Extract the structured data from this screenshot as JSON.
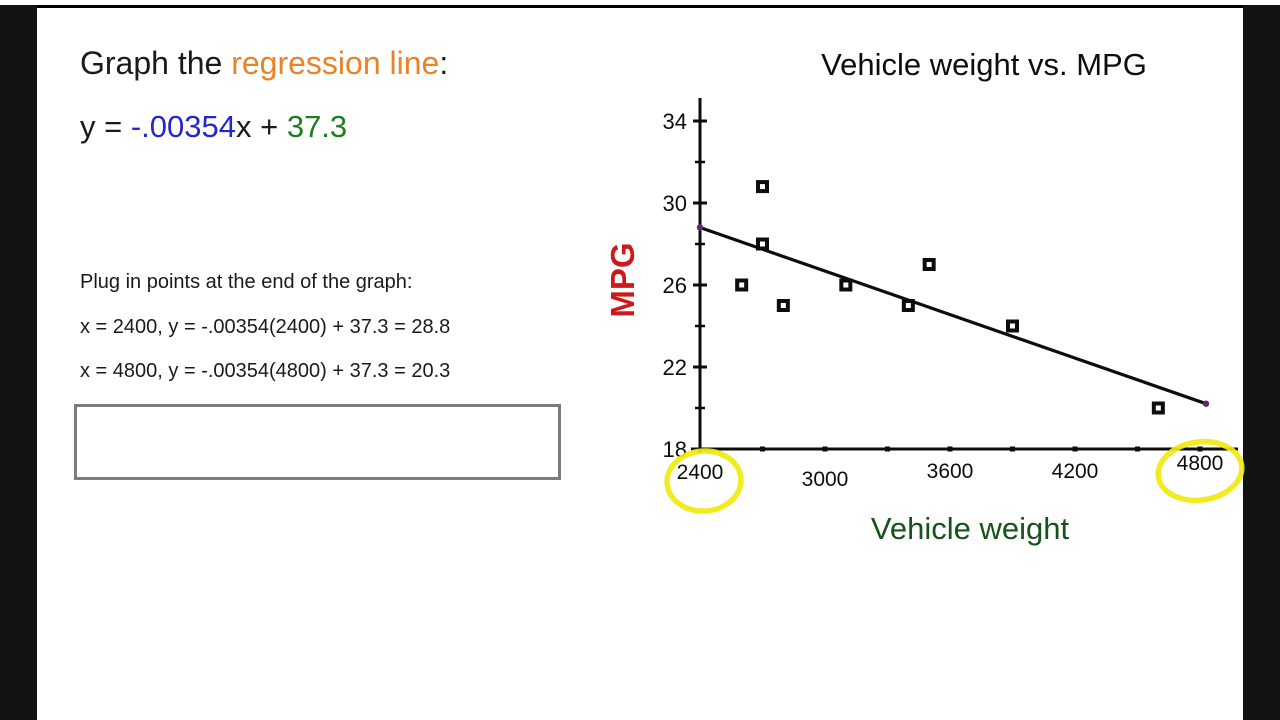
{
  "slide": {
    "title_parts": [
      {
        "text": "Graph the ",
        "color": "#1a1a1a"
      },
      {
        "text": "regression line",
        "color": "#e8832a"
      },
      {
        "text": ":",
        "color": "#1a1a1a"
      }
    ],
    "equation_parts": [
      {
        "text": "y = ",
        "color": "#1a1a1a"
      },
      {
        "text": "-.00354",
        "color": "#2328cc"
      },
      {
        "text": "x + ",
        "color": "#1a1a1a"
      },
      {
        "text": "37.3",
        "color": "#1e7d1e"
      }
    ],
    "instructions": "Plug in points at the end of the graph:",
    "point_calcs": [
      "x = 2400, y = -.00354(2400) + 37.3 = 28.8",
      "x = 4800, y = -.00354(4800) + 37.3 = 20.3"
    ]
  },
  "chart_data": {
    "type": "scatter",
    "title": "Vehicle weight vs. MPG",
    "xlabel": "Vehicle weight",
    "ylabel": "MPG",
    "xlim": [
      2400,
      4900
    ],
    "ylim": [
      18,
      35.5
    ],
    "x_ticks_labeled": [
      2400,
      3000,
      3600,
      4200,
      4800
    ],
    "x_tick_minor_step": 300,
    "y_ticks_labeled": [
      18,
      22,
      26,
      30,
      34
    ],
    "y_tick_minor_step": 2,
    "grid": false,
    "legend": false,
    "points": [
      [
        2700,
        30.8
      ],
      [
        2700,
        28
      ],
      [
        2600,
        26
      ],
      [
        2800,
        25
      ],
      [
        3100,
        26
      ],
      [
        3400,
        25
      ],
      [
        3500,
        27
      ],
      [
        3900,
        24
      ],
      [
        4600,
        20
      ]
    ],
    "regression_line": {
      "slope": -0.00354,
      "intercept": 37.3,
      "x_start": 2400,
      "x_end": 4800,
      "y_at_start": 28.8,
      "y_at_end": 20.3
    },
    "highlighted_x_ticks": [
      2400,
      4800
    ],
    "colors": {
      "ink": "#0d0d0d",
      "ylabel": "#cc1a1a",
      "xlabel": "#14531a",
      "highlight": "#f2e90f",
      "endpoint_dot": "#5b2a7d"
    }
  }
}
